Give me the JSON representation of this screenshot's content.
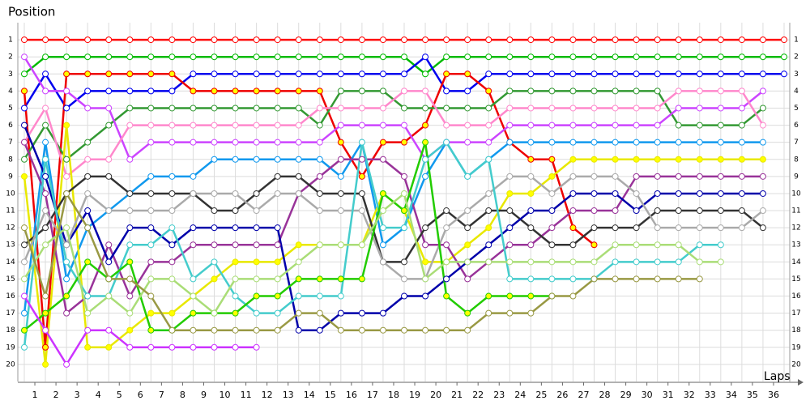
{
  "chart_data": {
    "type": "lap-chart",
    "title": "Position",
    "x_label": "Laps",
    "x": [
      0,
      1,
      2,
      3,
      4,
      5,
      6,
      7,
      8,
      9,
      10,
      11,
      12,
      13,
      14,
      15,
      16,
      17,
      18,
      19,
      20,
      21,
      22,
      23,
      24,
      25,
      26,
      27,
      28,
      29,
      30,
      31,
      32,
      33,
      34,
      35,
      36
    ],
    "xlim": [
      0,
      36
    ],
    "xticks": [
      {
        "value": 0.5,
        "label": "1"
      },
      {
        "value": 1.5,
        "label": "2"
      },
      {
        "value": 2.5,
        "label": "3"
      },
      {
        "value": 3.5,
        "label": "4"
      },
      {
        "value": 4.5,
        "label": "5"
      },
      {
        "value": 5.5,
        "label": "6"
      },
      {
        "value": 6.5,
        "label": "7"
      },
      {
        "value": 7.5,
        "label": "8"
      },
      {
        "value": 8.5,
        "label": "9"
      },
      {
        "value": 9.5,
        "label": "10"
      },
      {
        "value": 10.5,
        "label": "11"
      },
      {
        "value": 11.5,
        "label": "12"
      },
      {
        "value": 12.5,
        "label": "13"
      },
      {
        "value": 13.5,
        "label": "14"
      },
      {
        "value": 14.5,
        "label": "15"
      },
      {
        "value": 15.5,
        "label": "16"
      },
      {
        "value": 16.5,
        "label": "17"
      },
      {
        "value": 17.5,
        "label": "18"
      },
      {
        "value": 18.5,
        "label": "19"
      },
      {
        "value": 19.5,
        "label": "20"
      },
      {
        "value": 20.5,
        "label": "21"
      },
      {
        "value": 21.5,
        "label": "22"
      },
      {
        "value": 22.5,
        "label": "23"
      },
      {
        "value": 23.5,
        "label": "24"
      },
      {
        "value": 24.5,
        "label": "25"
      },
      {
        "value": 25.5,
        "label": "26"
      },
      {
        "value": 26.5,
        "label": "27"
      },
      {
        "value": 27.5,
        "label": "28"
      },
      {
        "value": 28.5,
        "label": "29"
      },
      {
        "value": 29.5,
        "label": "30"
      },
      {
        "value": 30.5,
        "label": "31"
      },
      {
        "value": 31.5,
        "label": "32"
      },
      {
        "value": 32.5,
        "label": "33"
      },
      {
        "value": 33.5,
        "label": "34"
      },
      {
        "value": 34.5,
        "label": "35"
      },
      {
        "value": 35.5,
        "label": "36"
      }
    ],
    "ylim": [
      21,
      0
    ],
    "yticks": [
      1,
      2,
      3,
      4,
      5,
      6,
      7,
      8,
      9,
      10,
      11,
      12,
      13,
      14,
      15,
      16,
      17,
      18,
      19,
      20
    ],
    "grid": true,
    "series": [
      {
        "color": "#ff0000",
        "values": [
          1,
          1,
          1,
          1,
          1,
          1,
          1,
          1,
          1,
          1,
          1,
          1,
          1,
          1,
          1,
          1,
          1,
          1,
          1,
          1,
          1,
          1,
          1,
          1,
          1,
          1,
          1,
          1,
          1,
          1,
          1,
          1,
          1,
          1,
          1,
          1,
          1
        ]
      },
      {
        "color": "#00bb00",
        "values": [
          3,
          2,
          2,
          2,
          2,
          2,
          2,
          2,
          2,
          2,
          2,
          2,
          2,
          2,
          2,
          2,
          2,
          2,
          2,
          3,
          2,
          2,
          2,
          2,
          2,
          2,
          2,
          2,
          2,
          2,
          2,
          2,
          2,
          2,
          2,
          2,
          2
        ]
      },
      {
        "color": "#0000ee",
        "values": [
          5,
          3,
          5,
          4,
          4,
          4,
          4,
          4,
          3,
          3,
          3,
          3,
          3,
          3,
          3,
          3,
          3,
          3,
          3,
          2,
          4,
          4,
          3,
          3,
          3,
          3,
          3,
          3,
          3,
          3,
          3,
          3,
          3,
          3,
          3,
          3,
          3
        ]
      },
      {
        "color": "#ee0000",
        "marker_fill": "#ffff00",
        "values": [
          4,
          19,
          3,
          3,
          3,
          3,
          3,
          3,
          4,
          4,
          4,
          4,
          4,
          4,
          4,
          7,
          9,
          7,
          7,
          6,
          3,
          3,
          4,
          7,
          8,
          8,
          12,
          13,
          null,
          null,
          null,
          null,
          null,
          null,
          null,
          null,
          null
        ]
      },
      {
        "color": "#339933",
        "values": [
          8,
          6,
          8,
          7,
          6,
          5,
          5,
          5,
          5,
          5,
          5,
          5,
          5,
          5,
          6,
          4,
          4,
          4,
          5,
          5,
          5,
          5,
          5,
          4,
          4,
          4,
          4,
          4,
          4,
          4,
          4,
          6,
          6,
          6,
          6,
          5,
          null
        ]
      },
      {
        "color": "#cc44ff",
        "values": [
          2,
          4,
          4,
          5,
          5,
          8,
          7,
          7,
          7,
          7,
          7,
          7,
          7,
          7,
          7,
          6,
          6,
          6,
          6,
          8,
          7,
          7,
          7,
          6,
          6,
          6,
          6,
          6,
          6,
          6,
          6,
          5,
          5,
          5,
          5,
          4,
          null
        ]
      },
      {
        "color": "#ff88cc",
        "values": [
          7,
          5,
          9,
          8,
          8,
          6,
          6,
          6,
          6,
          6,
          6,
          6,
          6,
          6,
          5,
          5,
          5,
          5,
          4,
          4,
          6,
          6,
          6,
          5,
          5,
          5,
          5,
          5,
          5,
          5,
          5,
          4,
          4,
          4,
          4,
          6,
          null
        ]
      },
      {
        "color": "#1199ee",
        "values": [
          17,
          7,
          15,
          12,
          11,
          10,
          9,
          9,
          9,
          8,
          8,
          8,
          8,
          8,
          8,
          9,
          7,
          13,
          12,
          9,
          7,
          9,
          8,
          7,
          7,
          7,
          7,
          7,
          7,
          7,
          7,
          7,
          7,
          7,
          7,
          7,
          null
        ]
      },
      {
        "color": "#e8e800",
        "marker_fill": "#ffff00",
        "values": [
          9,
          20,
          6,
          19,
          19,
          18,
          17,
          17,
          16,
          15,
          14,
          14,
          14,
          13,
          13,
          13,
          13,
          10,
          11,
          14,
          14,
          13,
          12,
          10,
          10,
          9,
          8,
          8,
          8,
          8,
          8,
          8,
          8,
          8,
          8,
          8,
          null
        ]
      },
      {
        "color": "#993399",
        "values": [
          7,
          10,
          17,
          16,
          13,
          16,
          14,
          14,
          13,
          13,
          13,
          13,
          13,
          10,
          9,
          8,
          8,
          8,
          9,
          13,
          13,
          15,
          14,
          13,
          13,
          12,
          11,
          11,
          11,
          9,
          9,
          9,
          9,
          9,
          9,
          9,
          null
        ]
      },
      {
        "color": "#333333",
        "values": [
          13,
          12,
          10,
          9,
          9,
          10,
          10,
          10,
          10,
          11,
          11,
          10,
          9,
          9,
          10,
          10,
          10,
          14,
          14,
          12,
          11,
          12,
          11,
          11,
          12,
          13,
          13,
          12,
          12,
          12,
          11,
          11,
          11,
          11,
          11,
          12,
          null
        ]
      },
      {
        "color": "#0000aa",
        "values": [
          6,
          9,
          13,
          11,
          14,
          12,
          12,
          13,
          12,
          12,
          12,
          12,
          12,
          18,
          18,
          17,
          17,
          17,
          16,
          16,
          15,
          14,
          13,
          12,
          11,
          11,
          10,
          10,
          10,
          11,
          10,
          10,
          10,
          10,
          10,
          10,
          null
        ]
      },
      {
        "color": "#aaaaaa",
        "values": [
          14,
          11,
          13,
          10,
          11,
          11,
          11,
          11,
          10,
          10,
          10,
          11,
          10,
          10,
          11,
          11,
          11,
          14,
          15,
          15,
          12,
          11,
          10,
          9,
          9,
          10,
          9,
          9,
          9,
          10,
          12,
          12,
          12,
          12,
          12,
          11,
          null
        ]
      },
      {
        "color": "#44cccc",
        "values": [
          19,
          8,
          14,
          16,
          16,
          13,
          13,
          12,
          15,
          14,
          16,
          17,
          17,
          16,
          16,
          16,
          7,
          12,
          12,
          8,
          7,
          9,
          8,
          15,
          15,
          15,
          15,
          15,
          14,
          14,
          14,
          14,
          13,
          13,
          null,
          null,
          null
        ]
      },
      {
        "color": "#22cc00",
        "marker_fill": "#ffff00",
        "values": [
          18,
          17,
          16,
          14,
          15,
          14,
          18,
          18,
          17,
          17,
          17,
          16,
          16,
          15,
          15,
          15,
          15,
          10,
          11,
          7,
          16,
          17,
          16,
          16,
          16,
          16,
          null,
          null,
          null,
          null,
          null,
          null,
          null,
          null,
          null,
          null,
          null
        ]
      },
      {
        "color": "#aadd77",
        "values": [
          15,
          13,
          12,
          17,
          16,
          17,
          15,
          15,
          16,
          17,
          15,
          15,
          15,
          14,
          13,
          13,
          13,
          11,
          10,
          15,
          14,
          14,
          14,
          14,
          14,
          14,
          14,
          14,
          13,
          13,
          13,
          13,
          14,
          14,
          null,
          null,
          null
        ]
      },
      {
        "color": "#999944",
        "values": [
          12,
          16,
          10,
          12,
          15,
          15,
          16,
          18,
          18,
          18,
          18,
          18,
          18,
          17,
          17,
          18,
          18,
          18,
          18,
          18,
          18,
          18,
          17,
          17,
          17,
          16,
          16,
          15,
          15,
          15,
          15,
          15,
          15,
          null,
          null,
          null,
          null
        ]
      },
      {
        "color": "#cc33ff",
        "values": [
          16,
          18,
          20,
          18,
          18,
          19,
          19,
          19,
          19,
          19,
          19,
          19,
          null,
          null,
          null,
          null,
          null,
          null,
          null,
          null,
          null,
          null,
          null,
          null,
          null,
          null,
          null,
          null,
          null,
          null,
          null,
          null,
          null,
          null,
          null,
          null,
          null
        ]
      }
    ]
  }
}
